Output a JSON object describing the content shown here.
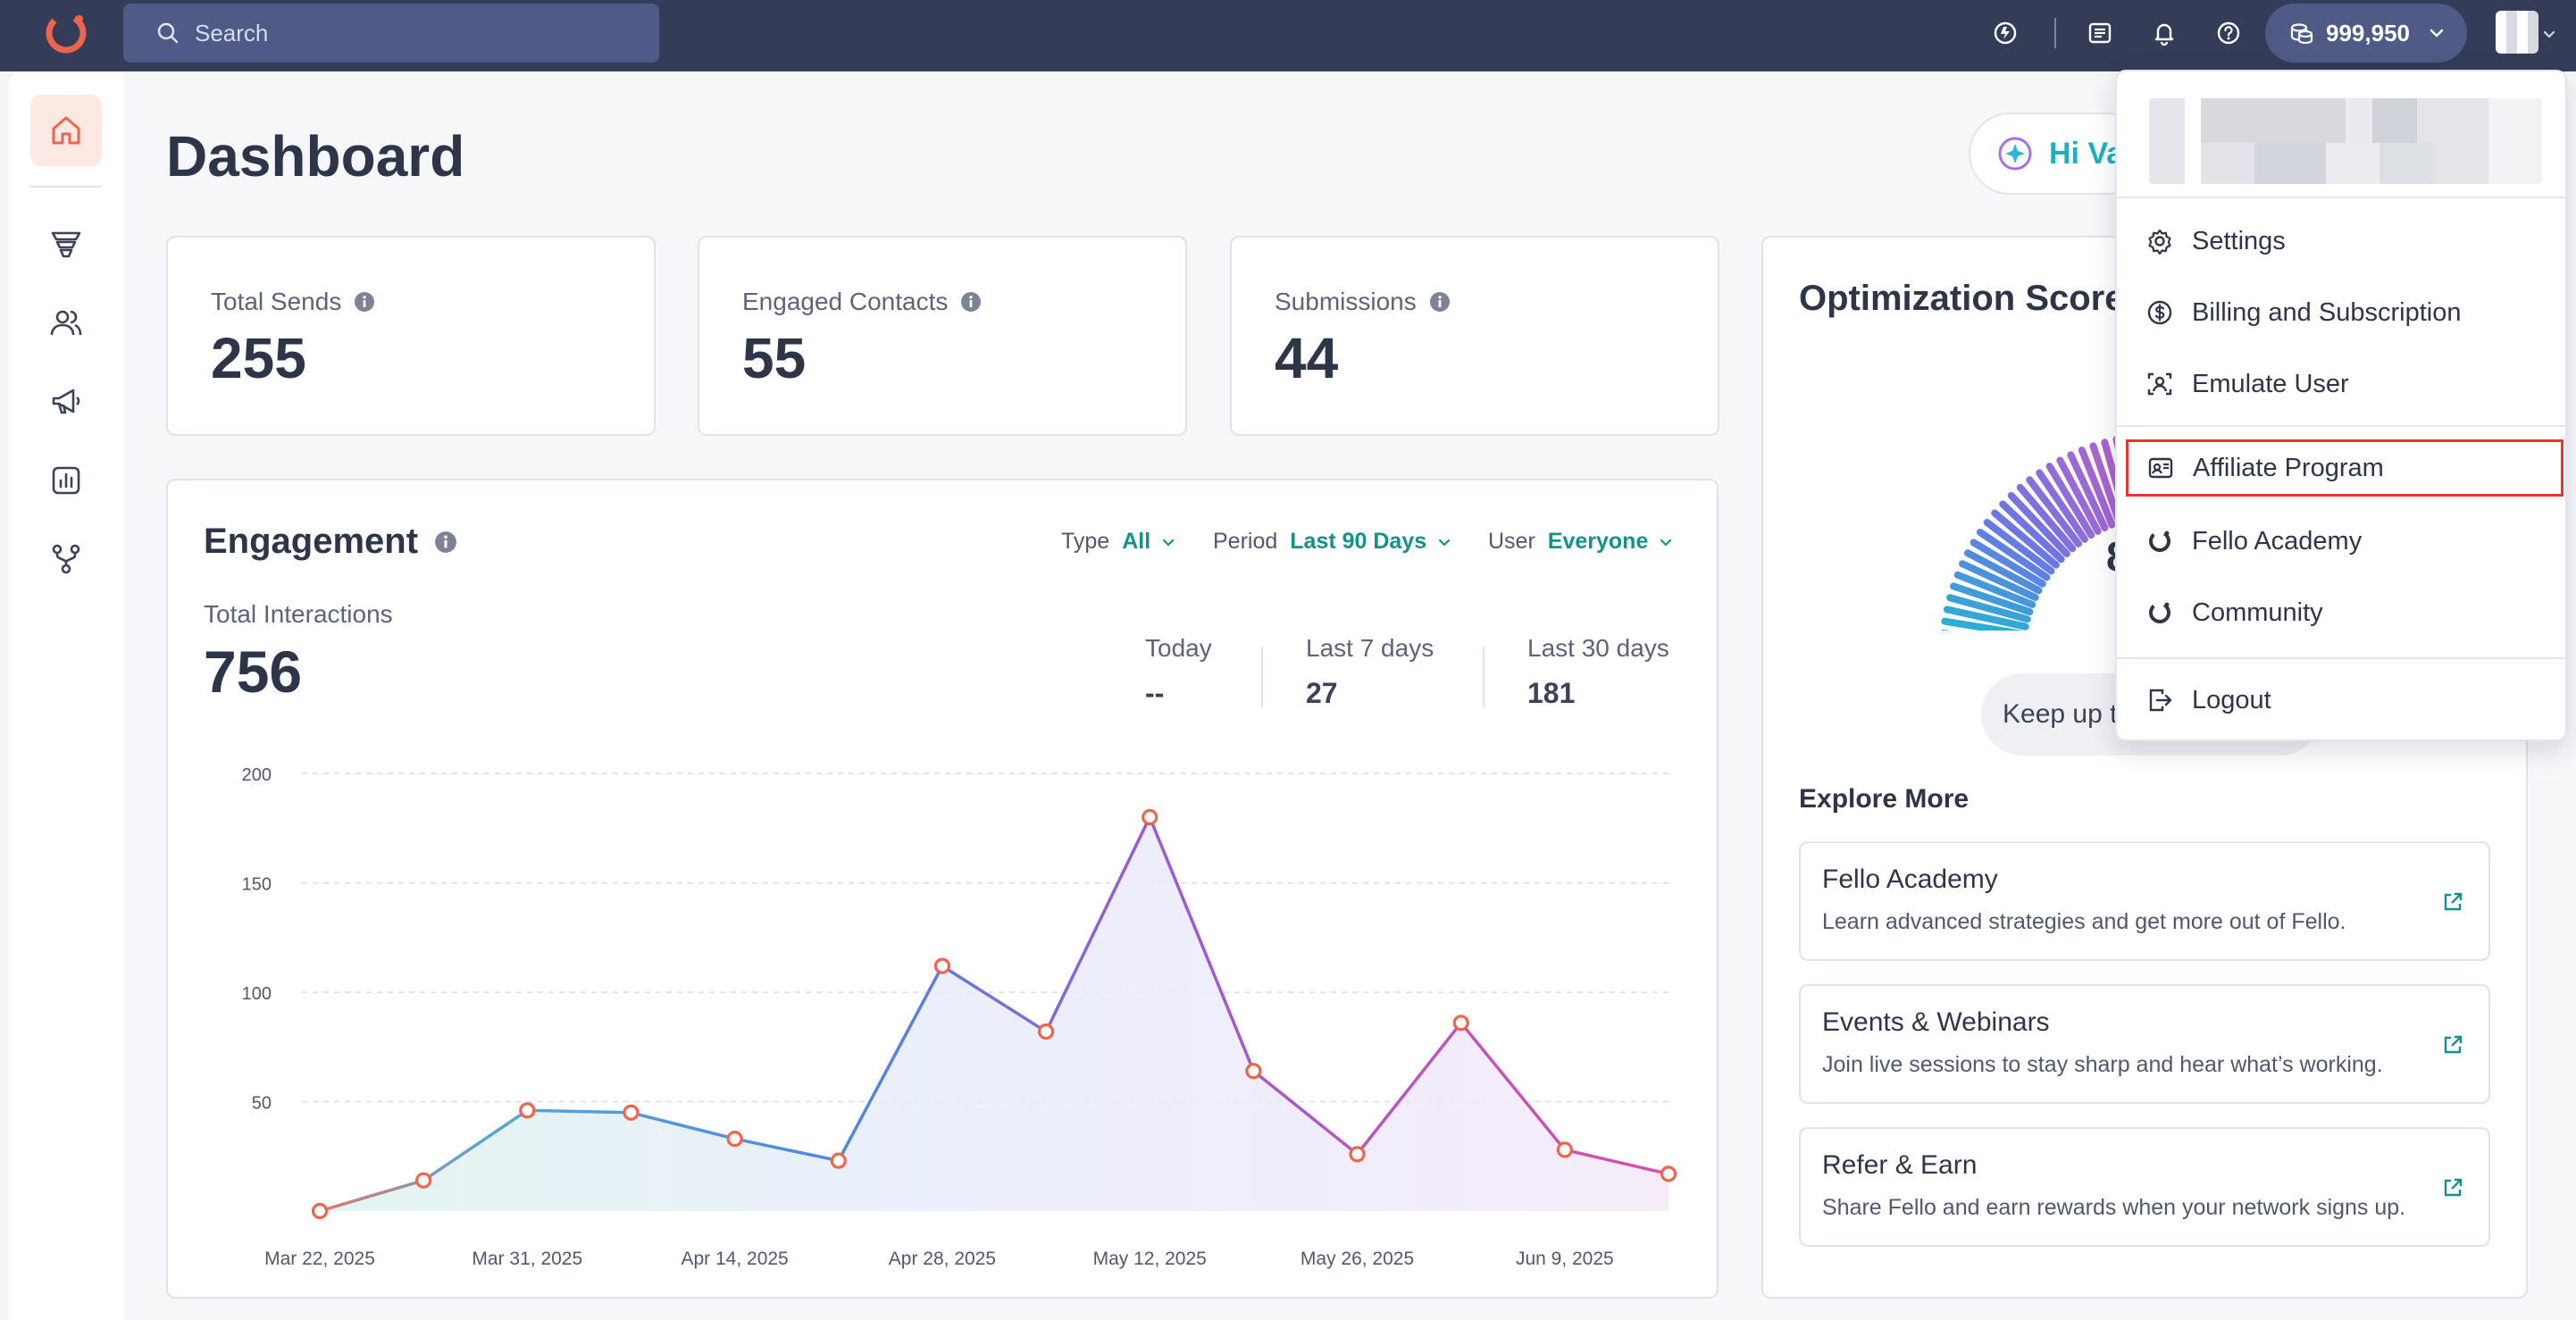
{
  "topbar": {
    "search_placeholder": "Search",
    "credits": "999,950",
    "icons": [
      "spark-icon",
      "list-icon",
      "bell-icon",
      "help-icon"
    ]
  },
  "sidebar": {
    "items": [
      {
        "icon": "home-icon",
        "active": true
      },
      {
        "icon": "funnel-icon",
        "active": false
      },
      {
        "icon": "contacts-icon",
        "active": false
      },
      {
        "icon": "megaphone-icon",
        "active": false
      },
      {
        "icon": "analytics-icon",
        "active": false
      },
      {
        "icon": "workflow-icon",
        "active": false
      }
    ]
  },
  "page": {
    "title": "Dashboard",
    "greeting": "Hi Va"
  },
  "stats": [
    {
      "label": "Total Sends",
      "value": "255"
    },
    {
      "label": "Engaged Contacts",
      "value": "55"
    },
    {
      "label": "Submissions",
      "value": "44"
    }
  ],
  "engagement": {
    "title": "Engagement",
    "filters": {
      "type_label": "Type",
      "type_value": "All",
      "period_label": "Period",
      "period_value": "Last 90 Days",
      "user_label": "User",
      "user_value": "Everyone"
    },
    "total_label": "Total Interactions",
    "total_value": "756",
    "periods": [
      {
        "label": "Today",
        "value": "--"
      },
      {
        "label": "Last 7 days",
        "value": "27"
      },
      {
        "label": "Last 30 days",
        "value": "181"
      }
    ]
  },
  "chart_data": {
    "type": "line",
    "title": "",
    "xlabel": "",
    "ylabel": "",
    "x": [
      "Mar 22, 2025",
      "Mar 27, 2025",
      "Mar 31, 2025",
      "Apr 7, 2025",
      "Apr 14, 2025",
      "Apr 21, 2025",
      "Apr 28, 2025",
      "May 5, 2025",
      "May 12, 2025",
      "May 19, 2025",
      "May 26, 2025",
      "Jun 2, 2025",
      "Jun 9, 2025",
      "Jun 16, 2025"
    ],
    "values": [
      0,
      14,
      46,
      45,
      33,
      23,
      112,
      82,
      180,
      64,
      26,
      86,
      28,
      17
    ],
    "x_tick_labels": [
      "Mar 22, 2025",
      "Mar 31, 2025",
      "Apr 14, 2025",
      "Apr 28, 2025",
      "May 12, 2025",
      "May 26, 2025",
      "Jun 9, 2025"
    ],
    "y_ticks": [
      50,
      100,
      150,
      200
    ],
    "ylim": [
      0,
      200
    ],
    "grid": true,
    "legend": "none"
  },
  "optimization": {
    "title": "Optimization Score",
    "score_visible": "8",
    "message": "Keep up t"
  },
  "explore": {
    "title": "Explore More",
    "items": [
      {
        "title": "Fello Academy",
        "desc": "Learn advanced strategies and get more out of Fello."
      },
      {
        "title": "Events & Webinars",
        "desc": "Join live sessions to stay sharp and hear what’s working."
      },
      {
        "title": "Refer & Earn",
        "desc": "Share Fello and earn rewards when your network signs up."
      }
    ]
  },
  "user_menu": {
    "items": [
      {
        "label": "Settings",
        "icon": "gear-icon"
      },
      {
        "label": "Billing and Subscription",
        "icon": "dollar-icon"
      },
      {
        "label": "Emulate User",
        "icon": "emulate-icon"
      },
      {
        "label": "Affiliate Program",
        "icon": "affiliate-icon"
      },
      {
        "label": "Fello Academy",
        "icon": "fello-logo-icon"
      },
      {
        "label": "Community",
        "icon": "fello-logo-icon"
      },
      {
        "label": "Logout",
        "icon": "logout-icon"
      }
    ],
    "highlighted": "Affiliate Program"
  },
  "colors": {
    "topbar": "#343c57",
    "accent_teal": "#14918a",
    "brand_orange": "#f0644b",
    "highlight_red": "#e8352f",
    "line_blue": "#4f86e0",
    "line_purple": "#9b59d6",
    "line_pink": "#d94fa8"
  }
}
